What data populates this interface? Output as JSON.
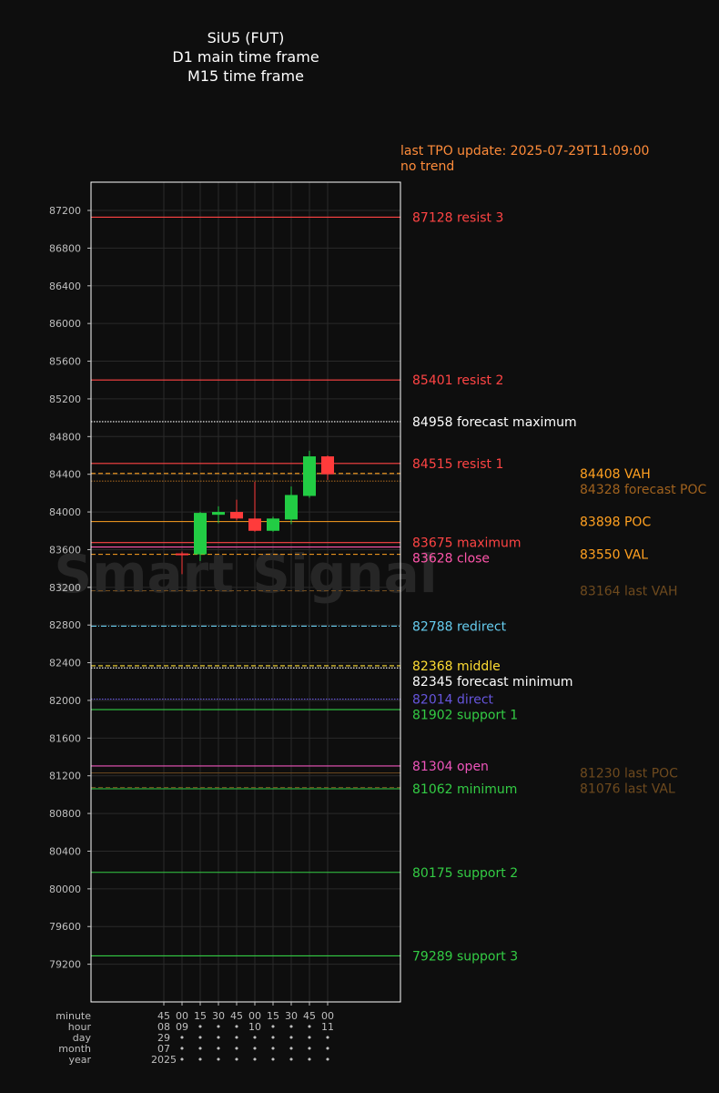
{
  "header": {
    "title_lines": [
      "SiU5 (FUT)",
      "D1 main time frame",
      "M15 time frame"
    ],
    "tpo_update": "last TPO update: 2025-07-29T11:09:00",
    "trend": "no trend"
  },
  "watermark": "Smart Signal",
  "chart_data": {
    "type": "candlestick",
    "title": "SiU5 (FUT)",
    "ylim": [
      78800,
      87500
    ],
    "yticks": [
      79200,
      79600,
      80000,
      80400,
      80800,
      81200,
      81600,
      82000,
      82400,
      82800,
      83200,
      83600,
      84000,
      84400,
      84800,
      85200,
      85600,
      86000,
      86400,
      86800,
      87200
    ],
    "x_axis": {
      "row_labels": [
        "minute",
        "hour",
        "day",
        "month",
        "year"
      ],
      "columns": [
        {
          "minute": "45",
          "hour": "08",
          "day": "29",
          "month": "07",
          "year": "2025"
        },
        {
          "minute": "00",
          "hour": "09",
          "day": "•",
          "month": "•",
          "year": "•"
        },
        {
          "minute": "15",
          "hour": "•",
          "day": "•",
          "month": "•",
          "year": "•"
        },
        {
          "minute": "30",
          "hour": "•",
          "day": "•",
          "month": "•",
          "year": "•"
        },
        {
          "minute": "45",
          "hour": "•",
          "day": "•",
          "month": "•",
          "year": "•"
        },
        {
          "minute": "00",
          "hour": "10",
          "day": "•",
          "month": "•",
          "year": "•"
        },
        {
          "minute": "15",
          "hour": "•",
          "day": "•",
          "month": "•",
          "year": "•"
        },
        {
          "minute": "30",
          "hour": "•",
          "day": "•",
          "month": "•",
          "year": "•"
        },
        {
          "minute": "45",
          "hour": "•",
          "day": "•",
          "month": "•",
          "year": "•"
        },
        {
          "minute": "00",
          "hour": "11",
          "day": "•",
          "month": "•",
          "year": "•"
        }
      ]
    },
    "candles": [
      {
        "time": "09:00",
        "open": 83560,
        "high": 83580,
        "low": 83340,
        "close": 83550
      },
      {
        "time": "09:15",
        "open": 83550,
        "high": 84000,
        "low": 83480,
        "close": 83990
      },
      {
        "time": "09:30",
        "open": 83970,
        "high": 84060,
        "low": 83880,
        "close": 84000
      },
      {
        "time": "09:45",
        "open": 84000,
        "high": 84130,
        "low": 83910,
        "close": 83930
      },
      {
        "time": "10:00",
        "open": 83930,
        "high": 84320,
        "low": 83790,
        "close": 83800
      },
      {
        "time": "10:15",
        "open": 83800,
        "high": 83950,
        "low": 83790,
        "close": 83930
      },
      {
        "time": "10:30",
        "open": 83920,
        "high": 84270,
        "low": 83870,
        "close": 84180
      },
      {
        "time": "10:45",
        "open": 84170,
        "high": 84650,
        "low": 84150,
        "close": 84590
      },
      {
        "time": "11:00",
        "open": 84590,
        "high": 84600,
        "low": 84340,
        "close": 84400
      }
    ],
    "levels": [
      {
        "value": 87128,
        "label": "87128 resist 3",
        "color": "#ff4444",
        "style": "solid",
        "column": "left"
      },
      {
        "value": 85401,
        "label": "85401 resist 2",
        "color": "#ff4444",
        "style": "solid",
        "column": "left"
      },
      {
        "value": 84958,
        "label": "84958 forecast maximum",
        "color": "#ffffff",
        "style": "dotted",
        "column": "left"
      },
      {
        "value": 84515,
        "label": "84515 resist 1",
        "color": "#ff4444",
        "style": "solid",
        "column": "left"
      },
      {
        "value": 83675,
        "label": "83675 maximum",
        "color": "#ff4444",
        "style": "solid",
        "column": "left"
      },
      {
        "value": 83628,
        "label": "83628 close",
        "color": "#ff55aa",
        "style": "solid",
        "column": "left"
      },
      {
        "value": 82788,
        "label": "82788 redirect",
        "color": "#66ccee",
        "style": "dashdot",
        "column": "left"
      },
      {
        "value": 82368,
        "label": "82368 middle",
        "color": "#ffdd33",
        "style": "dashed",
        "column": "left"
      },
      {
        "value": 82345,
        "label": "82345 forecast minimum",
        "color": "#ffffff",
        "style": "dotted",
        "column": "left"
      },
      {
        "value": 82014,
        "label": "82014 direct",
        "color": "#6655dd",
        "style": "dotted",
        "column": "left"
      },
      {
        "value": 81902,
        "label": "81902 support 1",
        "color": "#33cc44",
        "style": "solid",
        "column": "left"
      },
      {
        "value": 81304,
        "label": "81304 open",
        "color": "#ee55bb",
        "style": "solid",
        "column": "left"
      },
      {
        "value": 81062,
        "label": "81062 minimum",
        "color": "#33cc44",
        "style": "solid",
        "column": "left"
      },
      {
        "value": 80175,
        "label": "80175 support 2",
        "color": "#33cc44",
        "style": "solid",
        "column": "left"
      },
      {
        "value": 79289,
        "label": "79289 support 3",
        "color": "#33cc44",
        "style": "solid",
        "column": "left"
      },
      {
        "value": 84408,
        "label": "84408 VAH",
        "color": "#ffa020",
        "style": "dashed",
        "column": "right"
      },
      {
        "value": 84328,
        "label": "84328 forecast POC",
        "color": "#a0621e",
        "style": "dotted",
        "column": "right"
      },
      {
        "value": 83898,
        "label": "83898 POC",
        "color": "#ffa020",
        "style": "solid",
        "column": "right"
      },
      {
        "value": 83550,
        "label": "83550 VAL",
        "color": "#ffa020",
        "style": "dashed",
        "column": "right"
      },
      {
        "value": 83164,
        "label": "83164 last VAH",
        "color": "#6e4a1e",
        "style": "dashed",
        "column": "right"
      },
      {
        "value": 81230,
        "label": "81230 last POC",
        "color": "#6e4a1e",
        "style": "solid",
        "column": "right"
      },
      {
        "value": 81076,
        "label": "81076 last VAL",
        "color": "#6e4a1e",
        "style": "dashed",
        "column": "right"
      }
    ],
    "colors": {
      "up": "#22cc44",
      "down": "#ff3b3b",
      "background": "#0e0e0e",
      "grid": "#2a2a2a"
    }
  }
}
